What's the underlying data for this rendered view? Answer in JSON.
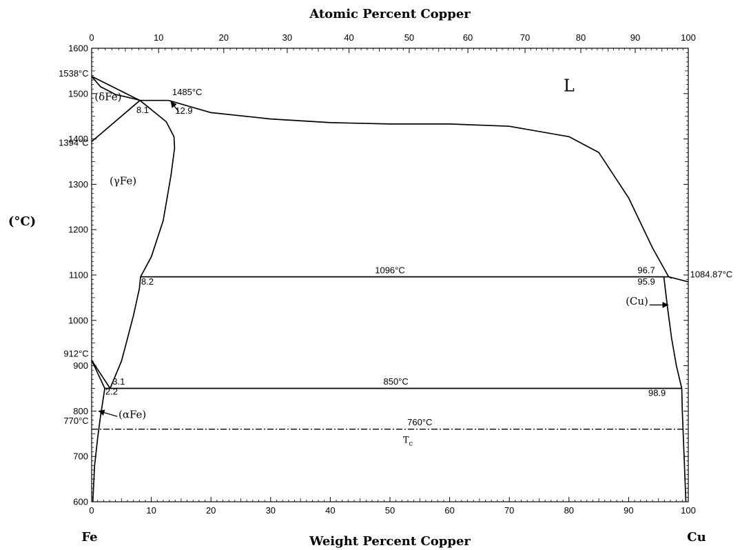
{
  "chart_data": {
    "type": "line",
    "title": "",
    "top_axis_label": "Atomic Percent Copper",
    "bottom_axis_label": "Weight Percent Copper",
    "ylabel": "(°C)",
    "left_end_label": "Fe",
    "right_end_label": "Cu",
    "xlim": [
      0,
      100
    ],
    "ylim": [
      600,
      1600
    ],
    "x_ticks": [
      "0",
      "10",
      "20",
      "30",
      "40",
      "50",
      "60",
      "70",
      "80",
      "90",
      "100"
    ],
    "top_ticks": [
      "0",
      "10",
      "20",
      "30",
      "40",
      "50",
      "60",
      "70",
      "80",
      "90",
      "100"
    ],
    "y_ticks": [
      "600",
      "700",
      "800",
      "900",
      "1000",
      "1100",
      "1200",
      "1300",
      "1400",
      "1500",
      "1600"
    ],
    "series": [
      {
        "style": "solid",
        "x": [
          0,
          1.5,
          3,
          4,
          6,
          8.2
        ],
        "y": [
          1538,
          1515,
          1505,
          1498,
          1492,
          1485
        ]
      },
      {
        "style": "solid",
        "x": [
          0,
          8.1
        ],
        "y": [
          1538,
          1485
        ]
      },
      {
        "style": "solid",
        "x": [
          0,
          8.1
        ],
        "y": [
          1394,
          1485
        ]
      },
      {
        "style": "solid",
        "x": [
          8.1,
          12.9
        ],
        "y": [
          1485,
          1485
        ]
      },
      {
        "style": "solid",
        "x": [
          12.9,
          20,
          30,
          40,
          50,
          60,
          70,
          80,
          85,
          90,
          94,
          96.7,
          97.2
        ],
        "y": [
          1485,
          1458,
          1444,
          1436,
          1433,
          1433,
          1428,
          1405,
          1370,
          1270,
          1160,
          1096,
          1093
        ]
      },
      {
        "style": "solid",
        "x": [
          96.7,
          100
        ],
        "y": [
          1096,
          1085
        ]
      },
      {
        "style": "solid",
        "x": [
          8.1,
          12.5,
          13.8,
          13.9,
          13.3,
          12,
          10,
          8.2
        ],
        "y": [
          1485,
          1438,
          1405,
          1380,
          1320,
          1220,
          1140,
          1096
        ]
      },
      {
        "style": "solid",
        "x": [
          8.2,
          8,
          7,
          6,
          5,
          3.1
        ],
        "y": [
          1096,
          1070,
          1010,
          960,
          910,
          850
        ]
      },
      {
        "style": "solid",
        "x": [
          8.2,
          96.7
        ],
        "y": [
          1096,
          1096
        ]
      },
      {
        "style": "solid",
        "x": [
          95.9,
          96.5,
          97.2,
          98,
          98.9
        ],
        "y": [
          1096,
          1030,
          960,
          900,
          850
        ]
      },
      {
        "style": "solid",
        "x": [
          98.9,
          99,
          99.3,
          99.6
        ],
        "y": [
          850,
          800,
          700,
          600
        ]
      },
      {
        "style": "solid",
        "x": [
          2.2,
          98.9
        ],
        "y": [
          850,
          850
        ]
      },
      {
        "style": "solid",
        "x": [
          0,
          3.1
        ],
        "y": [
          912,
          850
        ]
      },
      {
        "style": "solid",
        "x": [
          0,
          2.2
        ],
        "y": [
          912,
          850
        ]
      },
      {
        "style": "solid",
        "x": [
          2.2,
          1.5,
          1,
          0.5,
          0.2
        ],
        "y": [
          850,
          790,
          740,
          680,
          600
        ]
      },
      {
        "style": "dashdot",
        "x": [
          0,
          100
        ],
        "y": [
          760,
          760
        ]
      }
    ],
    "annotations": [
      {
        "text": "1538°C",
        "x": -0.5,
        "y": 1538,
        "anchor": "end"
      },
      {
        "text": "1485°C",
        "x": 13.5,
        "y": 1497,
        "anchor": "start"
      },
      {
        "text": "(δFe)",
        "x": 0.5,
        "y": 1485,
        "anchor": "start"
      },
      {
        "text": "8.1",
        "x": 7.5,
        "y": 1457,
        "anchor": "start"
      },
      {
        "text": "12.9",
        "x": 14,
        "y": 1456,
        "anchor": "start"
      },
      {
        "text": "L",
        "x": 80,
        "y": 1505,
        "anchor": "middle"
      },
      {
        "text": "1394°C",
        "x": -0.5,
        "y": 1385,
        "anchor": "end"
      },
      {
        "text": "(γFe)",
        "x": 3,
        "y": 1300,
        "anchor": "start"
      },
      {
        "text": "1096°C",
        "x": 50,
        "y": 1104,
        "anchor": "middle"
      },
      {
        "text": "96.7",
        "x": 91.5,
        "y": 1104,
        "anchor": "start"
      },
      {
        "text": "8.2",
        "x": 8.3,
        "y": 1079,
        "anchor": "start"
      },
      {
        "text": "95.9",
        "x": 91.5,
        "y": 1079,
        "anchor": "start"
      },
      {
        "text": "1084.87°C",
        "x": 100.3,
        "y": 1095,
        "anchor": "start"
      },
      {
        "text": "(Cu)",
        "x": 89.5,
        "y": 1035,
        "anchor": "start"
      },
      {
        "text": "912°C",
        "x": -0.5,
        "y": 920,
        "anchor": "end"
      },
      {
        "text": "3.1",
        "x": 3.5,
        "y": 858,
        "anchor": "start"
      },
      {
        "text": "850°C",
        "x": 51,
        "y": 858,
        "anchor": "middle"
      },
      {
        "text": "2.2",
        "x": 2.3,
        "y": 836,
        "anchor": "start"
      },
      {
        "text": "98.9",
        "x": 93.3,
        "y": 833,
        "anchor": "start"
      },
      {
        "text": "(αFe)",
        "x": 4.5,
        "y": 785,
        "anchor": "start"
      },
      {
        "text": "770°C",
        "x": -0.5,
        "y": 772,
        "anchor": "end"
      },
      {
        "text": "760°C",
        "x": 55,
        "y": 769,
        "anchor": "middle"
      },
      {
        "text": "Tc",
        "x": 53,
        "y": 730,
        "anchor": "middle",
        "serif": true
      }
    ],
    "arrows": [
      {
        "from": [
          14.6,
          1460
        ],
        "to": [
          13.3,
          1482
        ]
      },
      {
        "from": [
          4.3,
          788
        ],
        "to": [
          1.2,
          800
        ]
      },
      {
        "from": [
          93.5,
          1034
        ],
        "to": [
          96.6,
          1034
        ]
      }
    ]
  }
}
